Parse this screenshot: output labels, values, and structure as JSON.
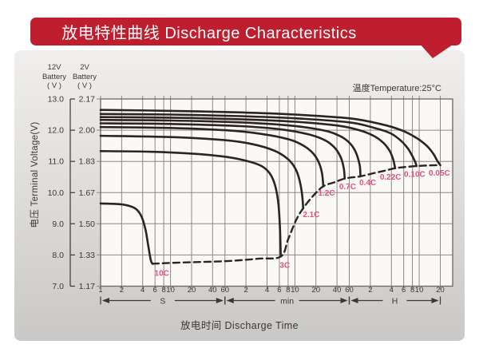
{
  "header": {
    "title": "放电特性曲线 Discharge Characteristics"
  },
  "panel": {
    "temperature_label": "温度Temperature:25°C",
    "y_axis": {
      "col1_header": "12V\nBattery\n( V )",
      "col2_header": "2V\nBattery\n( V )",
      "title": "电压 Terminal Voltage(V)",
      "ticks_12v": [
        "13.0",
        "12.0",
        "11.0",
        "10.0",
        "9.0",
        "8.0",
        "7.0"
      ],
      "ticks_2v": [
        "2.17",
        "2.00",
        "1.83",
        "1.67",
        "1.50",
        "1.33",
        "1.17"
      ]
    },
    "x_axis": {
      "title": "放电时间 Discharge Time"
    }
  },
  "colors": {
    "banner_red": "#bf1e2e",
    "curve": "#2b2421",
    "curve_label": "#e4517e",
    "grid": "#8c8984",
    "border": "#6b6762",
    "axis_text": "#3b3835",
    "plot_bg": "#faf9f7"
  },
  "chart_data": {
    "type": "line",
    "title": "放电特性曲线 Discharge Characteristics",
    "xlabel": "放电时间 Discharge Time",
    "ylabel": "电压 Terminal Voltage(V)",
    "x_scale": "log-seconds",
    "grid": true,
    "legend_position": "labels-on-curves",
    "y_axis": {
      "v12_range": [
        7.0,
        13.0
      ],
      "v2_range": [
        1.17,
        2.17
      ],
      "gridline_step_12v": 1.0
    },
    "x_axis": {
      "sections": [
        {
          "label": "S",
          "ticks": [
            [
              1,
              "1"
            ],
            [
              2,
              "2"
            ],
            [
              4,
              "4"
            ],
            [
              6,
              "6"
            ],
            [
              8,
              "8"
            ],
            [
              10,
              "10"
            ],
            [
              20,
              "20"
            ],
            [
              40,
              "40"
            ],
            [
              60,
              "60"
            ]
          ]
        },
        {
          "label": "min",
          "ticks": [
            [
              120,
              "2"
            ],
            [
              240,
              "4"
            ],
            [
              360,
              "6"
            ],
            [
              480,
              "8"
            ],
            [
              600,
              "10"
            ],
            [
              1200,
              "20"
            ],
            [
              2400,
              "40"
            ],
            [
              3600,
              "60"
            ]
          ]
        },
        {
          "label": "H",
          "ticks": [
            [
              7200,
              "2"
            ],
            [
              14400,
              "4"
            ],
            [
              21600,
              "6"
            ],
            [
              28800,
              "8"
            ],
            [
              36000,
              "10"
            ],
            [
              72000,
              "20"
            ]
          ]
        }
      ]
    },
    "series": [
      {
        "name": "0.05C",
        "dashed": false,
        "label_pos": [
          70000,
          10.63
        ],
        "points": [
          [
            1,
            12.65
          ],
          [
            10,
            12.62
          ],
          [
            100,
            12.57
          ],
          [
            600,
            12.5
          ],
          [
            3600,
            12.38
          ],
          [
            10000,
            12.2
          ],
          [
            20000,
            12.0
          ],
          [
            33000,
            11.75
          ],
          [
            46000,
            11.5
          ],
          [
            57000,
            11.25
          ],
          [
            66000,
            11.0
          ],
          [
            72000,
            10.88
          ]
        ]
      },
      {
        "name": "0.10C",
        "dashed": false,
        "label_pos": [
          31000,
          10.6
        ],
        "points": [
          [
            1,
            12.52
          ],
          [
            10,
            12.5
          ],
          [
            100,
            12.45
          ],
          [
            600,
            12.38
          ],
          [
            3600,
            12.25
          ],
          [
            8000,
            12.08
          ],
          [
            14000,
            11.9
          ],
          [
            20000,
            11.65
          ],
          [
            25000,
            11.4
          ],
          [
            29000,
            11.15
          ],
          [
            31500,
            10.98
          ],
          [
            33000,
            10.85
          ]
        ]
      },
      {
        "name": "0.22C",
        "dashed": false,
        "label_pos": [
          14000,
          10.5
        ],
        "points": [
          [
            1,
            12.42
          ],
          [
            10,
            12.4
          ],
          [
            100,
            12.35
          ],
          [
            600,
            12.27
          ],
          [
            2400,
            12.15
          ],
          [
            5000,
            12.0
          ],
          [
            8000,
            11.82
          ],
          [
            11000,
            11.6
          ],
          [
            13500,
            11.35
          ],
          [
            15200,
            11.08
          ],
          [
            16300,
            10.78
          ]
        ]
      },
      {
        "name": "0.4C",
        "dashed": false,
        "label_pos": [
          6600,
          10.32
        ],
        "points": [
          [
            1,
            12.33
          ],
          [
            10,
            12.31
          ],
          [
            100,
            12.25
          ],
          [
            500,
            12.15
          ],
          [
            1500,
            12.0
          ],
          [
            2600,
            11.82
          ],
          [
            3600,
            11.6
          ],
          [
            4400,
            11.32
          ],
          [
            5050,
            10.9
          ],
          [
            5200,
            10.52
          ]
        ]
      },
      {
        "name": "0.7C",
        "dashed": false,
        "label_pos": [
          3400,
          10.2
        ],
        "points": [
          [
            1,
            12.22
          ],
          [
            10,
            12.2
          ],
          [
            100,
            12.13
          ],
          [
            400,
            12.02
          ],
          [
            1000,
            11.85
          ],
          [
            1700,
            11.65
          ],
          [
            2300,
            11.4
          ],
          [
            2750,
            11.1
          ],
          [
            3000,
            10.78
          ],
          [
            3100,
            10.45
          ]
        ]
      },
      {
        "name": "1.2C",
        "dashed": false,
        "label_pos": [
          1700,
          10.0
        ],
        "points": [
          [
            1,
            12.1
          ],
          [
            10,
            12.07
          ],
          [
            60,
            12.0
          ],
          [
            200,
            11.88
          ],
          [
            500,
            11.7
          ],
          [
            800,
            11.5
          ],
          [
            1100,
            11.25
          ],
          [
            1330,
            10.95
          ],
          [
            1470,
            10.6
          ],
          [
            1530,
            10.2
          ]
        ]
      },
      {
        "name": "2.1C",
        "dashed": false,
        "label_pos": [
          1030,
          9.3
        ],
        "points": [
          [
            1,
            11.82
          ],
          [
            10,
            11.78
          ],
          [
            60,
            11.68
          ],
          [
            150,
            11.55
          ],
          [
            300,
            11.35
          ],
          [
            450,
            11.12
          ],
          [
            580,
            10.85
          ],
          [
            680,
            10.5
          ],
          [
            755,
            10.0
          ],
          [
            790,
            9.5
          ]
        ]
      },
      {
        "name": "3C",
        "dashed": false,
        "label_pos": [
          430,
          7.68
        ],
        "points": [
          [
            1,
            11.33
          ],
          [
            5,
            11.31
          ],
          [
            20,
            11.25
          ],
          [
            60,
            11.15
          ],
          [
            120,
            11.02
          ],
          [
            200,
            10.85
          ],
          [
            265,
            10.6
          ],
          [
            315,
            10.2
          ],
          [
            350,
            9.6
          ],
          [
            368,
            8.8
          ],
          [
            377,
            7.95
          ]
        ]
      },
      {
        "name": "10C",
        "dashed": false,
        "label_pos": [
          7.5,
          7.42
        ],
        "points": [
          [
            1,
            9.65
          ],
          [
            1.8,
            9.63
          ],
          [
            2.6,
            9.57
          ],
          [
            3.3,
            9.45
          ],
          [
            3.9,
            9.2
          ],
          [
            4.4,
            8.8
          ],
          [
            4.8,
            8.3
          ],
          [
            5.2,
            7.85
          ],
          [
            5.5,
            7.72
          ]
        ]
      },
      {
        "name": "cutoff-line",
        "dashed": true,
        "label_pos": null,
        "points": [
          [
            5.5,
            7.72
          ],
          [
            15,
            7.76
          ],
          [
            60,
            7.8
          ],
          [
            180,
            7.88
          ],
          [
            377,
            7.95
          ],
          [
            480,
            8.5
          ],
          [
            620,
            9.1
          ],
          [
            790,
            9.5
          ],
          [
            1100,
            9.9
          ],
          [
            1530,
            10.2
          ],
          [
            2200,
            10.33
          ],
          [
            3100,
            10.45
          ],
          [
            4100,
            10.49
          ],
          [
            5200,
            10.52
          ],
          [
            8000,
            10.62
          ],
          [
            11500,
            10.7
          ],
          [
            16300,
            10.78
          ],
          [
            23000,
            10.82
          ],
          [
            33000,
            10.85
          ],
          [
            50000,
            10.87
          ],
          [
            72000,
            10.88
          ]
        ]
      }
    ]
  }
}
